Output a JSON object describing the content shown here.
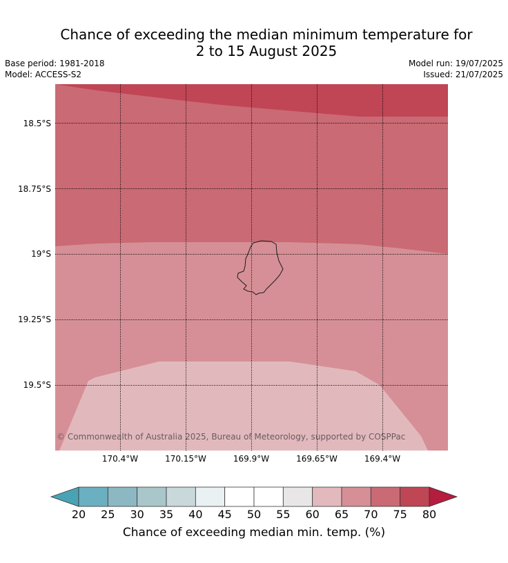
{
  "title_line1": "Chance of exceeding the median minimum temperature for",
  "title_line2": "2 to 15 August 2025",
  "meta": {
    "base_period": "Base period: 1981-2018",
    "model": "Model: ACCESS-S2",
    "model_run": "Model run: 19/07/2025",
    "issued": "Issued: 21/07/2025"
  },
  "latitude_labels": [
    "18.5°S",
    "18.75°S",
    "19°S",
    "19.25°S",
    "19.5°S"
  ],
  "longitude_labels": [
    "170.4°W",
    "170.15°W",
    "169.9°W",
    "169.65°W",
    "169.4°W"
  ],
  "credit": "© Commonwealth of Australia 2025, Bureau of Meteorology, supported by COSPPac",
  "colorbar": {
    "ticks": [
      "20",
      "25",
      "30",
      "35",
      "40",
      "45",
      "50",
      "55",
      "60",
      "65",
      "70",
      "75",
      "80"
    ],
    "label": "Chance of exceeding median min. temp. (%)",
    "colors": [
      "#4aa3b5",
      "#6bb0c0",
      "#8cb8c3",
      "#a9c7cb",
      "#c8d8db",
      "#e9f1f2",
      "#ffffff",
      "#ffffff",
      "#e8e6e6",
      "#e2b9bd",
      "#d68f96",
      "#c96a74",
      "#bf4655",
      "#b41d3e"
    ]
  },
  "map_colors": {
    "band_75_80": "#c04655",
    "band_70_75": "#ca6a74",
    "band_65_70": "#d68f96",
    "band_60_65": "#e1b9bd",
    "island_outline": "#1a1a1a"
  }
}
